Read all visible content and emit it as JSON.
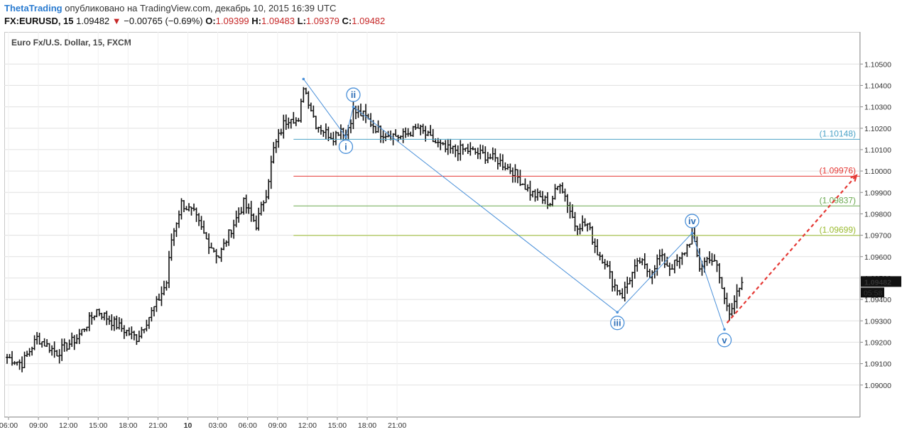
{
  "header": {
    "author": "ThetaTrading",
    "published": "опубликовано на TradingView.com, декабрь 10, 2015 16:39 UTC",
    "symbol": "FX:EURUSD, 15",
    "last": "1.09482",
    "change": "−0.00765 (−0.69%)",
    "o_label": "O:",
    "o": "1.09399",
    "h_label": "H:",
    "h": "1.09483",
    "l_label": "L:",
    "l": "1.09379",
    "c_label": "C:",
    "c": "1.09482"
  },
  "chart_title": "Euro Fx/U.S. Dollar, 15, FXCM",
  "price_badge": "1.09482",
  "timer_badge": "05:58",
  "colors": {
    "candle": "#111111",
    "wave": "#4a90d9",
    "target": "#e53935",
    "grid": "#e0e0e0"
  },
  "chart_data": {
    "type": "ohlc",
    "ylim": [
      1.0885,
      1.1065
    ],
    "y_ticks": [
      "1.10500",
      "1.10400",
      "1.10300",
      "1.10200",
      "1.10100",
      "1.10000",
      "1.09900",
      "1.09800",
      "1.09700",
      "1.09600",
      "1.09500",
      "1.09400",
      "1.09300",
      "1.09200",
      "1.09100",
      "1.09000"
    ],
    "x_ticks": [
      "06:00",
      "09:00",
      "12:00",
      "15:00",
      "18:00",
      "21:00",
      "10",
      "03:00",
      "06:00",
      "09:00",
      "12:00",
      "15:00",
      "18:00",
      "21:00"
    ],
    "levels": [
      {
        "value": 1.10148,
        "label": "(1.10148)",
        "color": "#4ba3c7"
      },
      {
        "value": 1.09976,
        "label": "(1.09976)",
        "color": "#e53935"
      },
      {
        "value": 1.09837,
        "label": "(1.09837)",
        "color": "#6aa84f"
      },
      {
        "value": 1.09699,
        "label": "(1.09699)",
        "color": "#9bbb2f"
      }
    ],
    "waves": [
      {
        "label": "i",
        "bar": 136,
        "price": 1.1016
      },
      {
        "label": "ii",
        "bar": 139,
        "price": 1.103
      },
      {
        "label": "iii",
        "bar": 245,
        "price": 1.0934
      },
      {
        "label": "iv",
        "bar": 275,
        "price": 1.0971
      },
      {
        "label": "v",
        "bar": 288,
        "price": 1.0926
      }
    ],
    "wave_start": {
      "bar": 119,
      "price": 1.1043
    },
    "target": {
      "from_bar": 289,
      "from_price": 1.0929,
      "to_bar": 341,
      "to_price": 1.0998
    },
    "anchors": [
      [
        0,
        1.0913
      ],
      [
        6,
        1.091
      ],
      [
        12,
        1.0922
      ],
      [
        20,
        1.0915
      ],
      [
        28,
        1.0922
      ],
      [
        36,
        1.0935
      ],
      [
        44,
        1.0928
      ],
      [
        52,
        1.0922
      ],
      [
        60,
        1.0938
      ],
      [
        64,
        1.0948
      ],
      [
        66,
        1.0968
      ],
      [
        70,
        1.0985
      ],
      [
        75,
        1.098
      ],
      [
        80,
        1.0968
      ],
      [
        85,
        1.096
      ],
      [
        90,
        1.0973
      ],
      [
        95,
        1.0985
      ],
      [
        100,
        1.0975
      ],
      [
        104,
        1.099
      ],
      [
        107,
        1.101
      ],
      [
        111,
        1.1022
      ],
      [
        114,
        1.1026
      ],
      [
        117,
        1.1022
      ],
      [
        119,
        1.104
      ],
      [
        124,
        1.1022
      ],
      [
        128,
        1.1018
      ],
      [
        131,
        1.1016
      ],
      [
        134,
        1.102
      ],
      [
        136,
        1.1017
      ],
      [
        139,
        1.1028
      ],
      [
        143,
        1.1026
      ],
      [
        150,
        1.1018
      ],
      [
        158,
        1.1016
      ],
      [
        165,
        1.102
      ],
      [
        170,
        1.1015
      ],
      [
        176,
        1.101
      ],
      [
        184,
        1.101
      ],
      [
        190,
        1.1008
      ],
      [
        197,
        1.1005
      ],
      [
        203,
        1.1
      ],
      [
        210,
        1.099
      ],
      [
        218,
        1.0985
      ],
      [
        222,
        1.0995
      ],
      [
        228,
        1.0975
      ],
      [
        233,
        1.0975
      ],
      [
        237,
        1.0962
      ],
      [
        240,
        1.0958
      ],
      [
        243,
        1.0948
      ],
      [
        247,
        1.0942
      ],
      [
        250,
        1.095
      ],
      [
        254,
        1.0958
      ],
      [
        258,
        1.0952
      ],
      [
        262,
        1.096
      ],
      [
        266,
        1.0955
      ],
      [
        270,
        1.0958
      ],
      [
        273,
        1.0965
      ],
      [
        275,
        1.097
      ],
      [
        278,
        1.0955
      ],
      [
        282,
        1.096
      ],
      [
        285,
        1.0955
      ],
      [
        288,
        1.094
      ],
      [
        290,
        1.0935
      ],
      [
        293,
        1.0942
      ],
      [
        295,
        1.0946
      ]
    ]
  }
}
